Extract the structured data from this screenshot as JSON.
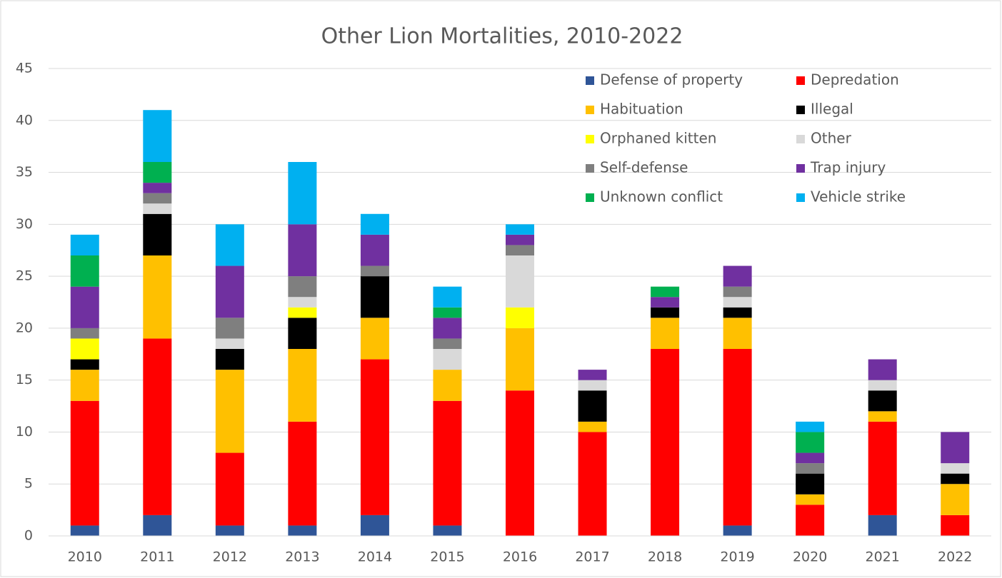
{
  "chart_data": {
    "type": "stacked_bar",
    "title": "Other Lion Mortalities, 2010-2022",
    "categories": [
      "2010",
      "2011",
      "2012",
      "2013",
      "2014",
      "2015",
      "2016",
      "2017",
      "2018",
      "2019",
      "2020",
      "2021",
      "2022"
    ],
    "series": [
      {
        "name": "Defense of property",
        "color": "#2f5597",
        "values": [
          1,
          2,
          1,
          1,
          2,
          1,
          0,
          0,
          0,
          1,
          0,
          2,
          0
        ]
      },
      {
        "name": "Depredation",
        "color": "#ff0000",
        "values": [
          12,
          17,
          7,
          10,
          15,
          12,
          14,
          10,
          18,
          17,
          3,
          9,
          2
        ]
      },
      {
        "name": "Habituation",
        "color": "#ffc000",
        "values": [
          3,
          8,
          8,
          7,
          4,
          3,
          6,
          1,
          3,
          3,
          1,
          1,
          3
        ]
      },
      {
        "name": "Illegal",
        "color": "#000000",
        "values": [
          1,
          4,
          2,
          3,
          4,
          0,
          0,
          3,
          1,
          1,
          2,
          2,
          1
        ]
      },
      {
        "name": "Orphaned kitten",
        "color": "#ffff00",
        "values": [
          2,
          0,
          0,
          1,
          0,
          0,
          2,
          0,
          0,
          0,
          0,
          0,
          0
        ]
      },
      {
        "name": "Other",
        "color": "#d9d9d9",
        "values": [
          0,
          1,
          1,
          1,
          0,
          2,
          5,
          1,
          0,
          1,
          0,
          1,
          1
        ]
      },
      {
        "name": "Self-defense",
        "color": "#7f7f7f",
        "values": [
          1,
          1,
          2,
          2,
          1,
          1,
          1,
          0,
          0,
          1,
          1,
          0,
          0
        ]
      },
      {
        "name": "Trap injury",
        "color": "#7030a0",
        "values": [
          4,
          1,
          5,
          5,
          3,
          2,
          1,
          1,
          1,
          2,
          1,
          2,
          3
        ]
      },
      {
        "name": "Unknown conflict",
        "color": "#00b050",
        "values": [
          3,
          2,
          0,
          0,
          0,
          1,
          0,
          0,
          1,
          0,
          2,
          0,
          0
        ]
      },
      {
        "name": "Vehicle strike",
        "color": "#00b0f0",
        "values": [
          2,
          5,
          4,
          6,
          2,
          2,
          1,
          0,
          0,
          0,
          1,
          0,
          0
        ]
      }
    ],
    "ylim": [
      0,
      45
    ],
    "yticks": [
      0,
      5,
      10,
      15,
      20,
      25,
      30,
      35,
      40,
      45
    ],
    "grid": true,
    "legend_position": "top-right"
  }
}
